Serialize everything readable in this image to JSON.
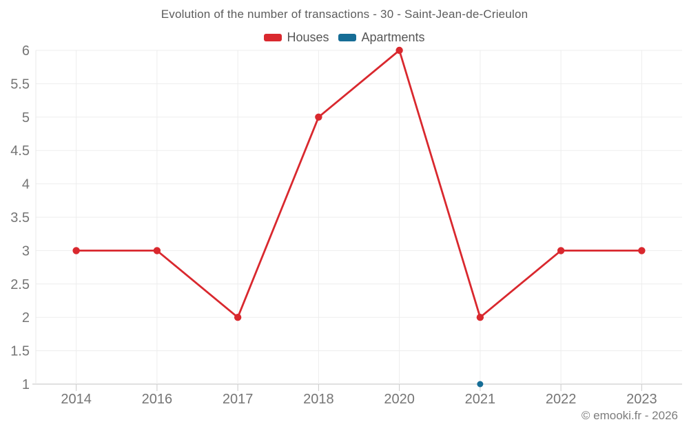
{
  "page": {
    "footer": "© emooki.fr - 2026"
  },
  "chart_data": {
    "type": "line",
    "title": "Evolution of the number of transactions - 30 - Saint-Jean-de-Crieulon",
    "categories": [
      "2014",
      "2016",
      "2017",
      "2018",
      "2020",
      "2021",
      "2022",
      "2023"
    ],
    "series": [
      {
        "name": "Houses",
        "color": "#d9282e",
        "marker_radius": 5.2,
        "values": [
          3,
          3,
          2,
          5,
          6,
          2,
          3,
          3
        ]
      },
      {
        "name": "Apartments",
        "color": "#166d96",
        "marker_radius": 4.5,
        "values": [
          null,
          null,
          null,
          null,
          null,
          1,
          null,
          null
        ]
      }
    ],
    "ylim": [
      1,
      6
    ],
    "ytick_step": 0.5,
    "grid": true,
    "legend_position": "top",
    "colors": {
      "grid_line": "#ededed",
      "axis_line": "#c2c2c2",
      "tick_mark": "#c9c9c9",
      "boundary_line": "#e8e8e8",
      "tick_label": "#757575"
    }
  }
}
